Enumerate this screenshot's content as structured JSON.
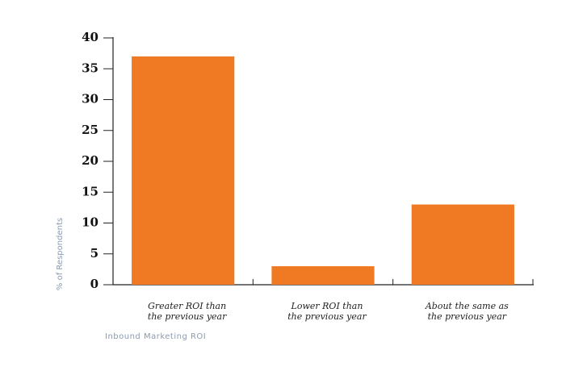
{
  "chart_data": {
    "type": "bar",
    "x_label": "Inbound Marketing ROI",
    "y_label": "% of Respondents",
    "categories": [
      "Greater ROI than\nthe previous year",
      "Lower ROI than\nthe previous year",
      "About the same as\nthe previous year"
    ],
    "values": [
      37,
      3,
      13
    ],
    "color": "#f07a23",
    "ylim": [
      0,
      40
    ],
    "yticks": [
      0,
      5,
      10,
      15,
      20,
      25,
      30,
      35,
      40
    ]
  }
}
